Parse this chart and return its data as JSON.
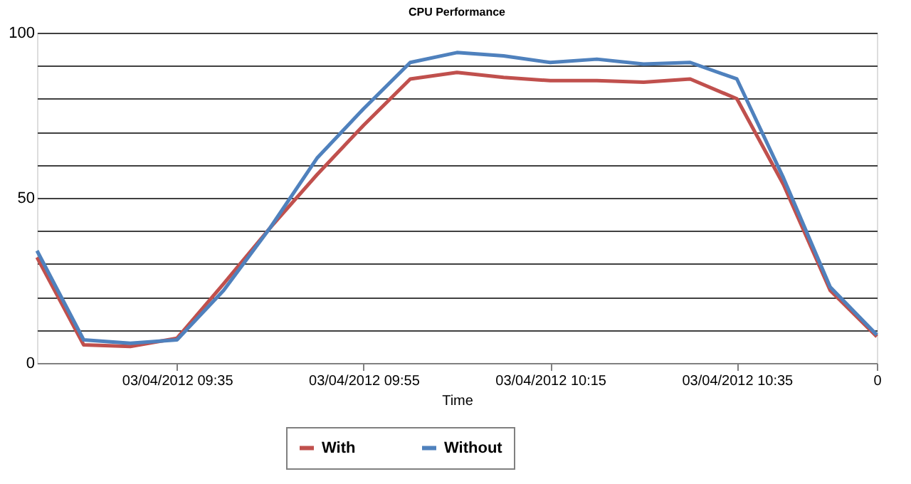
{
  "chart_data": {
    "type": "line",
    "title": "CPU Performance",
    "xlabel": "Time",
    "x": [
      "2012-03-04T09:20",
      "2012-03-04T09:25",
      "2012-03-04T09:30",
      "2012-03-04T09:35",
      "2012-03-04T09:40",
      "2012-03-04T09:45",
      "2012-03-04T09:50",
      "2012-03-04T09:55",
      "2012-03-04T10:00",
      "2012-03-04T10:05",
      "2012-03-04T10:10",
      "2012-03-04T10:15",
      "2012-03-04T10:20",
      "2012-03-04T10:25",
      "2012-03-04T10:30",
      "2012-03-04T10:35",
      "2012-03-04T10:40",
      "2012-03-04T10:45",
      "2012-03-04T10:50"
    ],
    "series": [
      {
        "name": "With",
        "color": "#c0504d",
        "values": [
          32,
          5.5,
          5,
          7.5,
          24,
          41,
          57,
          72,
          86,
          88,
          86.5,
          85.5,
          85.5,
          85,
          86,
          80,
          54,
          22,
          8
        ]
      },
      {
        "name": "Without",
        "color": "#4f81bd",
        "values": [
          34,
          7,
          6,
          7,
          22,
          41,
          62,
          77,
          91,
          94,
          93,
          91,
          92,
          90.5,
          91,
          86,
          56,
          23,
          8.5
        ]
      }
    ],
    "xlim": [
      "2012-03-04T09:20",
      "2012-03-04T10:50"
    ],
    "xticks": [
      {
        "value": "2012-03-04T09:35",
        "label": "03/04/2012 09:35"
      },
      {
        "value": "2012-03-04T09:55",
        "label": "03/04/2012 09:55"
      },
      {
        "value": "2012-03-04T10:15",
        "label": "03/04/2012 10:15"
      },
      {
        "value": "2012-03-04T10:35",
        "label": "03/04/2012 10:35"
      },
      {
        "value": "2012-03-04T10:50",
        "label": "0"
      }
    ],
    "ylim": [
      0,
      100
    ],
    "yticks": [
      0,
      {
        "value": 10,
        "label": null
      },
      {
        "value": 20,
        "label": null
      },
      {
        "value": 30,
        "label": null
      },
      {
        "value": 40,
        "label": null
      },
      50,
      {
        "value": 60,
        "label": null
      },
      {
        "value": 70,
        "label": null
      },
      {
        "value": 80,
        "label": null
      },
      {
        "value": 90,
        "label": null
      },
      100
    ],
    "grid": "y",
    "legend": "bottom",
    "marker": "none",
    "line_style": "solid"
  }
}
